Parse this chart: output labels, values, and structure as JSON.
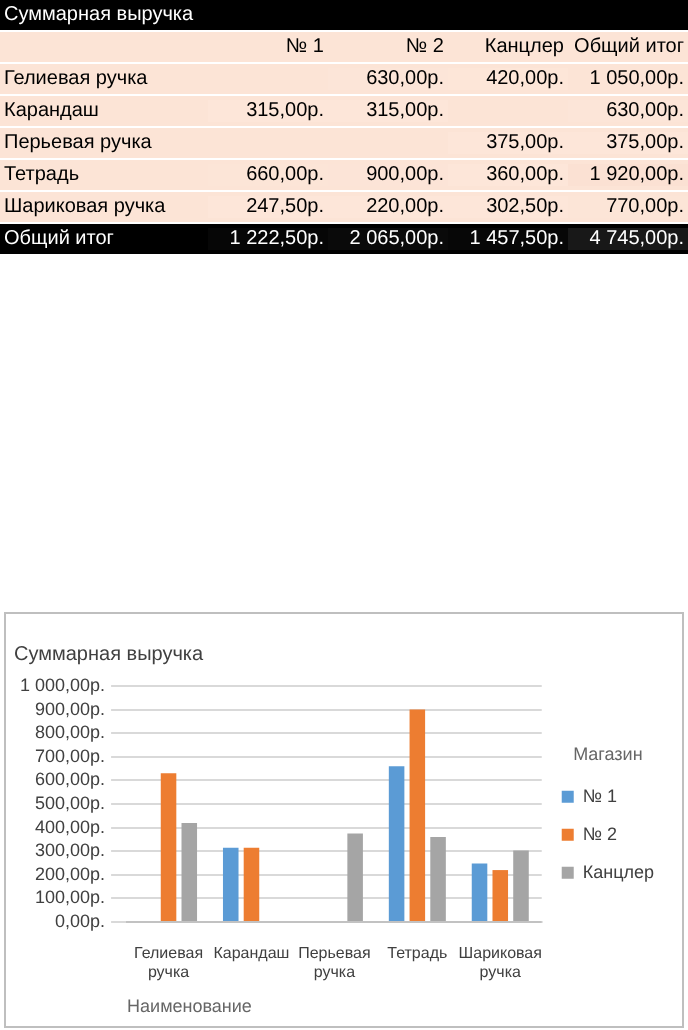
{
  "chart_data": [
    {
      "type": "heatmap",
      "title": "Суммарная выручка",
      "categories": [
        "№ 1",
        "№ 2",
        "Канцлер",
        "Общий итог"
      ],
      "y_categories": [
        "Гелиевая ручка",
        "Карандаш",
        "Перьевая ручка",
        "Тетрадь",
        "Шариковая ручка",
        "Общий итог"
      ],
      "cells": [
        [
          null,
          630,
          420,
          1050
        ],
        [
          315,
          315,
          null,
          630
        ],
        [
          null,
          null,
          375,
          375
        ],
        [
          660,
          900,
          360,
          1920
        ],
        [
          247.5,
          220,
          302.5,
          770
        ],
        [
          1222.5,
          2065,
          1457.5,
          4745
        ]
      ],
      "cell_labels": [
        [
          null,
          "630,00р.",
          "420,00р.",
          "1 050,00р."
        ],
        [
          "315,00р.",
          "315,00р.",
          null,
          "630,00р."
        ],
        [
          null,
          null,
          "375,00р.",
          "375,00р."
        ],
        [
          "660,00р.",
          "900,00р.",
          "360,00р.",
          "1 920,00р."
        ],
        [
          "247,50р.",
          "220,00р.",
          "302,50р.",
          "770,00р."
        ],
        [
          "1 222,50р.",
          "2 065,00р.",
          "1 457,50р.",
          "4 745,00р."
        ]
      ]
    },
    {
      "type": "bar",
      "title": "Суммарная выручка",
      "xlabel": "Наименование",
      "legend_title": "Магазин",
      "categories": [
        "Гелиевая ручка",
        "Карандаш",
        "Перьевая ручка",
        "Тетрадь",
        "Шариковая ручка"
      ],
      "series": [
        {
          "name": "№ 1",
          "color": "#5b9bd5",
          "values": [
            null,
            315,
            null,
            660,
            247.5
          ]
        },
        {
          "name": "№ 2",
          "color": "#ed7d31",
          "values": [
            630,
            315,
            null,
            900,
            220
          ]
        },
        {
          "name": "Канцлер",
          "color": "#a5a5a5",
          "values": [
            420,
            null,
            375,
            360,
            302.5
          ]
        }
      ],
      "ylim": [
        0,
        1000
      ],
      "yticks": [
        {
          "value": 0,
          "label": "0,00р."
        },
        {
          "value": 100,
          "label": "100,00р."
        },
        {
          "value": 200,
          "label": "200,00р."
        },
        {
          "value": 300,
          "label": "300,00р."
        },
        {
          "value": 400,
          "label": "400,00р."
        },
        {
          "value": 500,
          "label": "500,00р."
        },
        {
          "value": 600,
          "label": "600,00р."
        },
        {
          "value": 700,
          "label": "700,00р."
        },
        {
          "value": 800,
          "label": "800,00р."
        },
        {
          "value": 900,
          "label": "900,00р."
        },
        {
          "value": 1000,
          "label": "1 000,00р."
        }
      ],
      "grid": "y",
      "legend": "right"
    }
  ]
}
